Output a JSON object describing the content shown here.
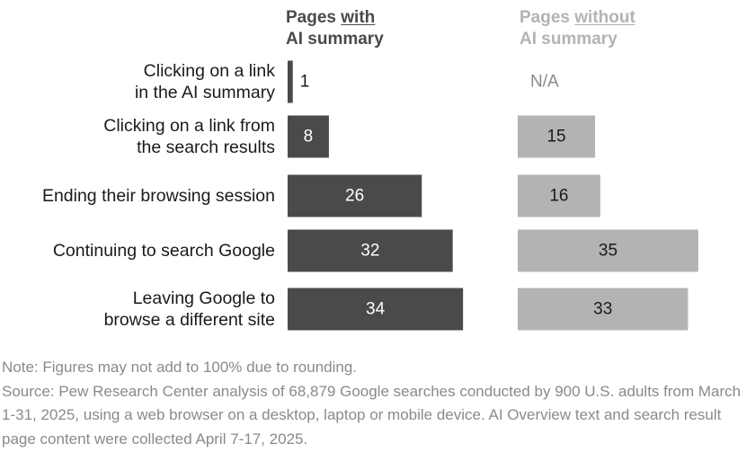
{
  "headers": {
    "with": {
      "prefix": "Pages ",
      "emph": "with",
      "line2": "AI summary"
    },
    "without": {
      "prefix": "Pages ",
      "emph": "without",
      "line2": "AI summary"
    }
  },
  "chart_data": {
    "type": "bar",
    "orientation": "horizontal",
    "categories": [
      [
        "Clicking on a link",
        "in the AI summary"
      ],
      [
        "Clicking on a link from",
        "the search results"
      ],
      [
        "Ending their browsing session"
      ],
      [
        "Continuing to search Google"
      ],
      [
        "Leaving Google to",
        "browse a different site"
      ]
    ],
    "series": [
      {
        "name": "Pages with AI summary",
        "values": [
          1,
          8,
          26,
          32,
          34
        ],
        "labels": [
          "1",
          "8",
          "26",
          "32",
          "34"
        ],
        "color": "#4a4a4a"
      },
      {
        "name": "Pages without AI summary",
        "values": [
          null,
          15,
          16,
          35,
          33
        ],
        "labels": [
          "N/A",
          "15",
          "16",
          "35",
          "33"
        ],
        "color": "#b3b3b3"
      }
    ],
    "unit": "%"
  },
  "notes": {
    "note": "Note: Figures may not add to 100% due to rounding.",
    "source": "Source: Pew Research Center analysis of 68,879 Google searches conducted by 900 U.S. adults from March 1-31, 2025, using a web browser on a desktop, laptop or mobile device. AI Overview text and search result page content were collected April 7-17, 2025."
  }
}
